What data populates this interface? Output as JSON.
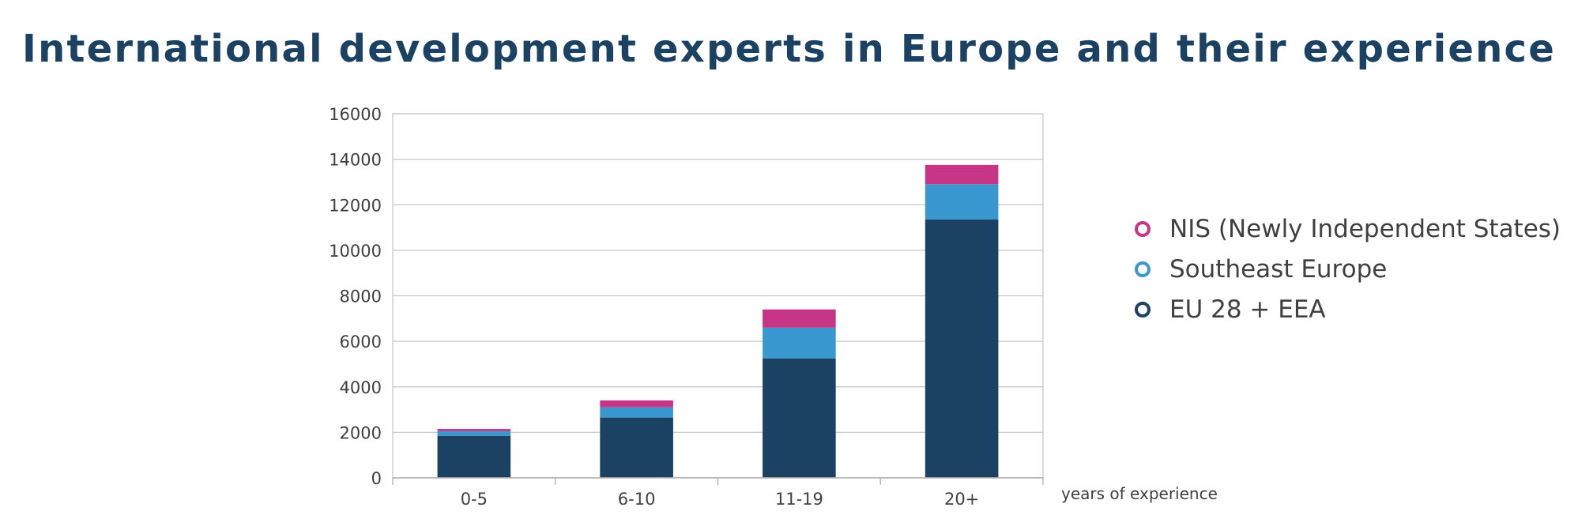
{
  "chart_data": {
    "type": "bar",
    "stacked": true,
    "title": "International development experts in Europe and their experience",
    "xlabel": "years of experience",
    "ylabel": "",
    "categories": [
      "0-5",
      "6-10",
      "11-19",
      "20+"
    ],
    "ylim": [
      0,
      16000
    ],
    "yticks": [
      0,
      2000,
      4000,
      6000,
      8000,
      10000,
      12000,
      14000,
      16000
    ],
    "grid": true,
    "legend_position": "right",
    "series": [
      {
        "name": "EU 28 + EEA",
        "color": "#1b4263",
        "values": [
          1850,
          2650,
          5250,
          11350
        ]
      },
      {
        "name": "Southeast Europe",
        "color": "#3a98d0",
        "values": [
          200,
          450,
          1350,
          1550
        ]
      },
      {
        "name": "NIS (Newly Independent States)",
        "color": "#c73586",
        "values": [
          100,
          300,
          800,
          850
        ]
      }
    ],
    "legend_order": [
      2,
      1,
      0
    ]
  }
}
